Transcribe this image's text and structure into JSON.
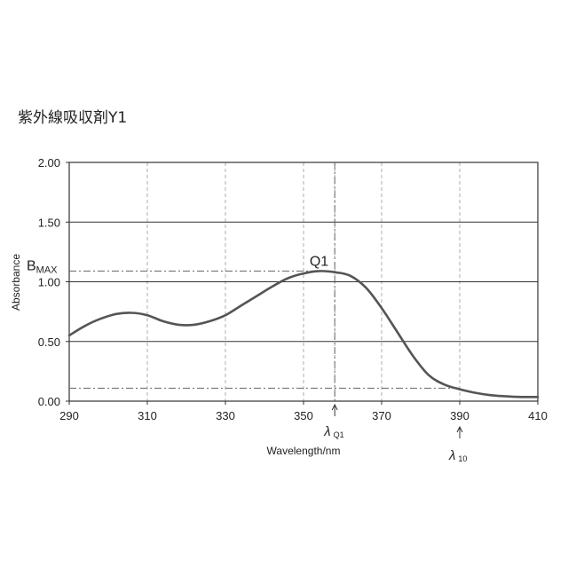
{
  "title": "紫外線吸収剤Y1",
  "chart_data": {
    "type": "line",
    "title": "紫外線吸収剤Y1",
    "xlabel": "Wavelength/nm",
    "ylabel": "Absorbance",
    "xlim": [
      290,
      410
    ],
    "ylim": [
      0,
      2
    ],
    "x_ticks": [
      290,
      310,
      330,
      350,
      370,
      390,
      410
    ],
    "y_ticks": [
      0,
      0.5,
      1.0,
      1.5,
      2.0
    ],
    "x_tick_labels": [
      "290",
      "310",
      "330",
      "350",
      "370",
      "390",
      "410"
    ],
    "y_tick_labels": [
      "0.00",
      "0.50",
      "1.00",
      "1.50",
      "2.00"
    ],
    "extra_vertical_gridlines": [
      358
    ],
    "grid": true,
    "series": [
      {
        "x": [
          290,
          294,
          298,
          302,
          306,
          310,
          314,
          318,
          322,
          326,
          330,
          334,
          338,
          342,
          346,
          350,
          354,
          358,
          362,
          366,
          370,
          374,
          378,
          382,
          386,
          390,
          394,
          398,
          402,
          406,
          410
        ],
        "y": [
          0.55,
          0.63,
          0.69,
          0.73,
          0.74,
          0.72,
          0.67,
          0.64,
          0.64,
          0.67,
          0.72,
          0.8,
          0.88,
          0.96,
          1.03,
          1.07,
          1.09,
          1.08,
          1.05,
          0.95,
          0.78,
          0.58,
          0.38,
          0.22,
          0.14,
          0.1,
          0.07,
          0.05,
          0.04,
          0.035,
          0.035
        ],
        "color": "#555555"
      }
    ],
    "annotations": {
      "bmax_label": "B",
      "bmax_sub": "MAX",
      "bmax_value": 1.09,
      "peak_label": "Q1",
      "peak_x": 358,
      "lambda_q1_symbol": "λ",
      "lambda_q1_sub": "Q1",
      "lambda_q1_x": 358,
      "lambda_10_symbol": "λ",
      "lambda_10_sub": "10",
      "lambda_10_x": 390,
      "ten_percent_level": 0.109
    }
  }
}
